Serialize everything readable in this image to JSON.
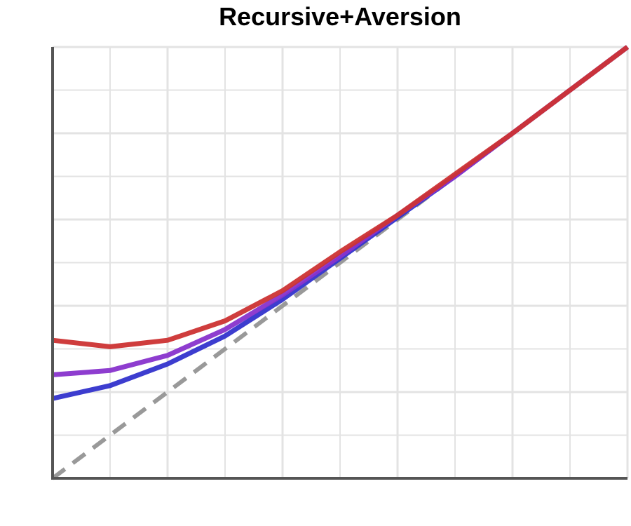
{
  "chart_data": {
    "type": "line",
    "title": "Recursive+Aversion",
    "xlabel": "",
    "ylabel": "",
    "xlim": [
      0,
      10
    ],
    "ylim": [
      0,
      10
    ],
    "grid": true,
    "legend": "none",
    "x": [
      0,
      1,
      2,
      3,
      4,
      5,
      6,
      7,
      8,
      9,
      10
    ],
    "series": [
      {
        "color": "#999999",
        "style": "dashed",
        "values": [
          0,
          1,
          2,
          3,
          4,
          5,
          6,
          7,
          8,
          9,
          10
        ]
      },
      {
        "color": "#3333cc",
        "style": "solid",
        "values": [
          1.85,
          2.15,
          2.65,
          3.3,
          4.15,
          5.1,
          6.05,
          7.0,
          8.0,
          9.0,
          10.0
        ]
      },
      {
        "color": "#8833cc",
        "style": "solid",
        "values": [
          2.4,
          2.5,
          2.85,
          3.45,
          4.25,
          5.15,
          6.1,
          7.0,
          8.0,
          9.0,
          10.0
        ]
      },
      {
        "color": "#cc3333",
        "style": "solid",
        "values": [
          3.2,
          3.05,
          3.2,
          3.65,
          4.35,
          5.25,
          6.1,
          7.05,
          8.0,
          9.0,
          10.0
        ]
      }
    ]
  }
}
